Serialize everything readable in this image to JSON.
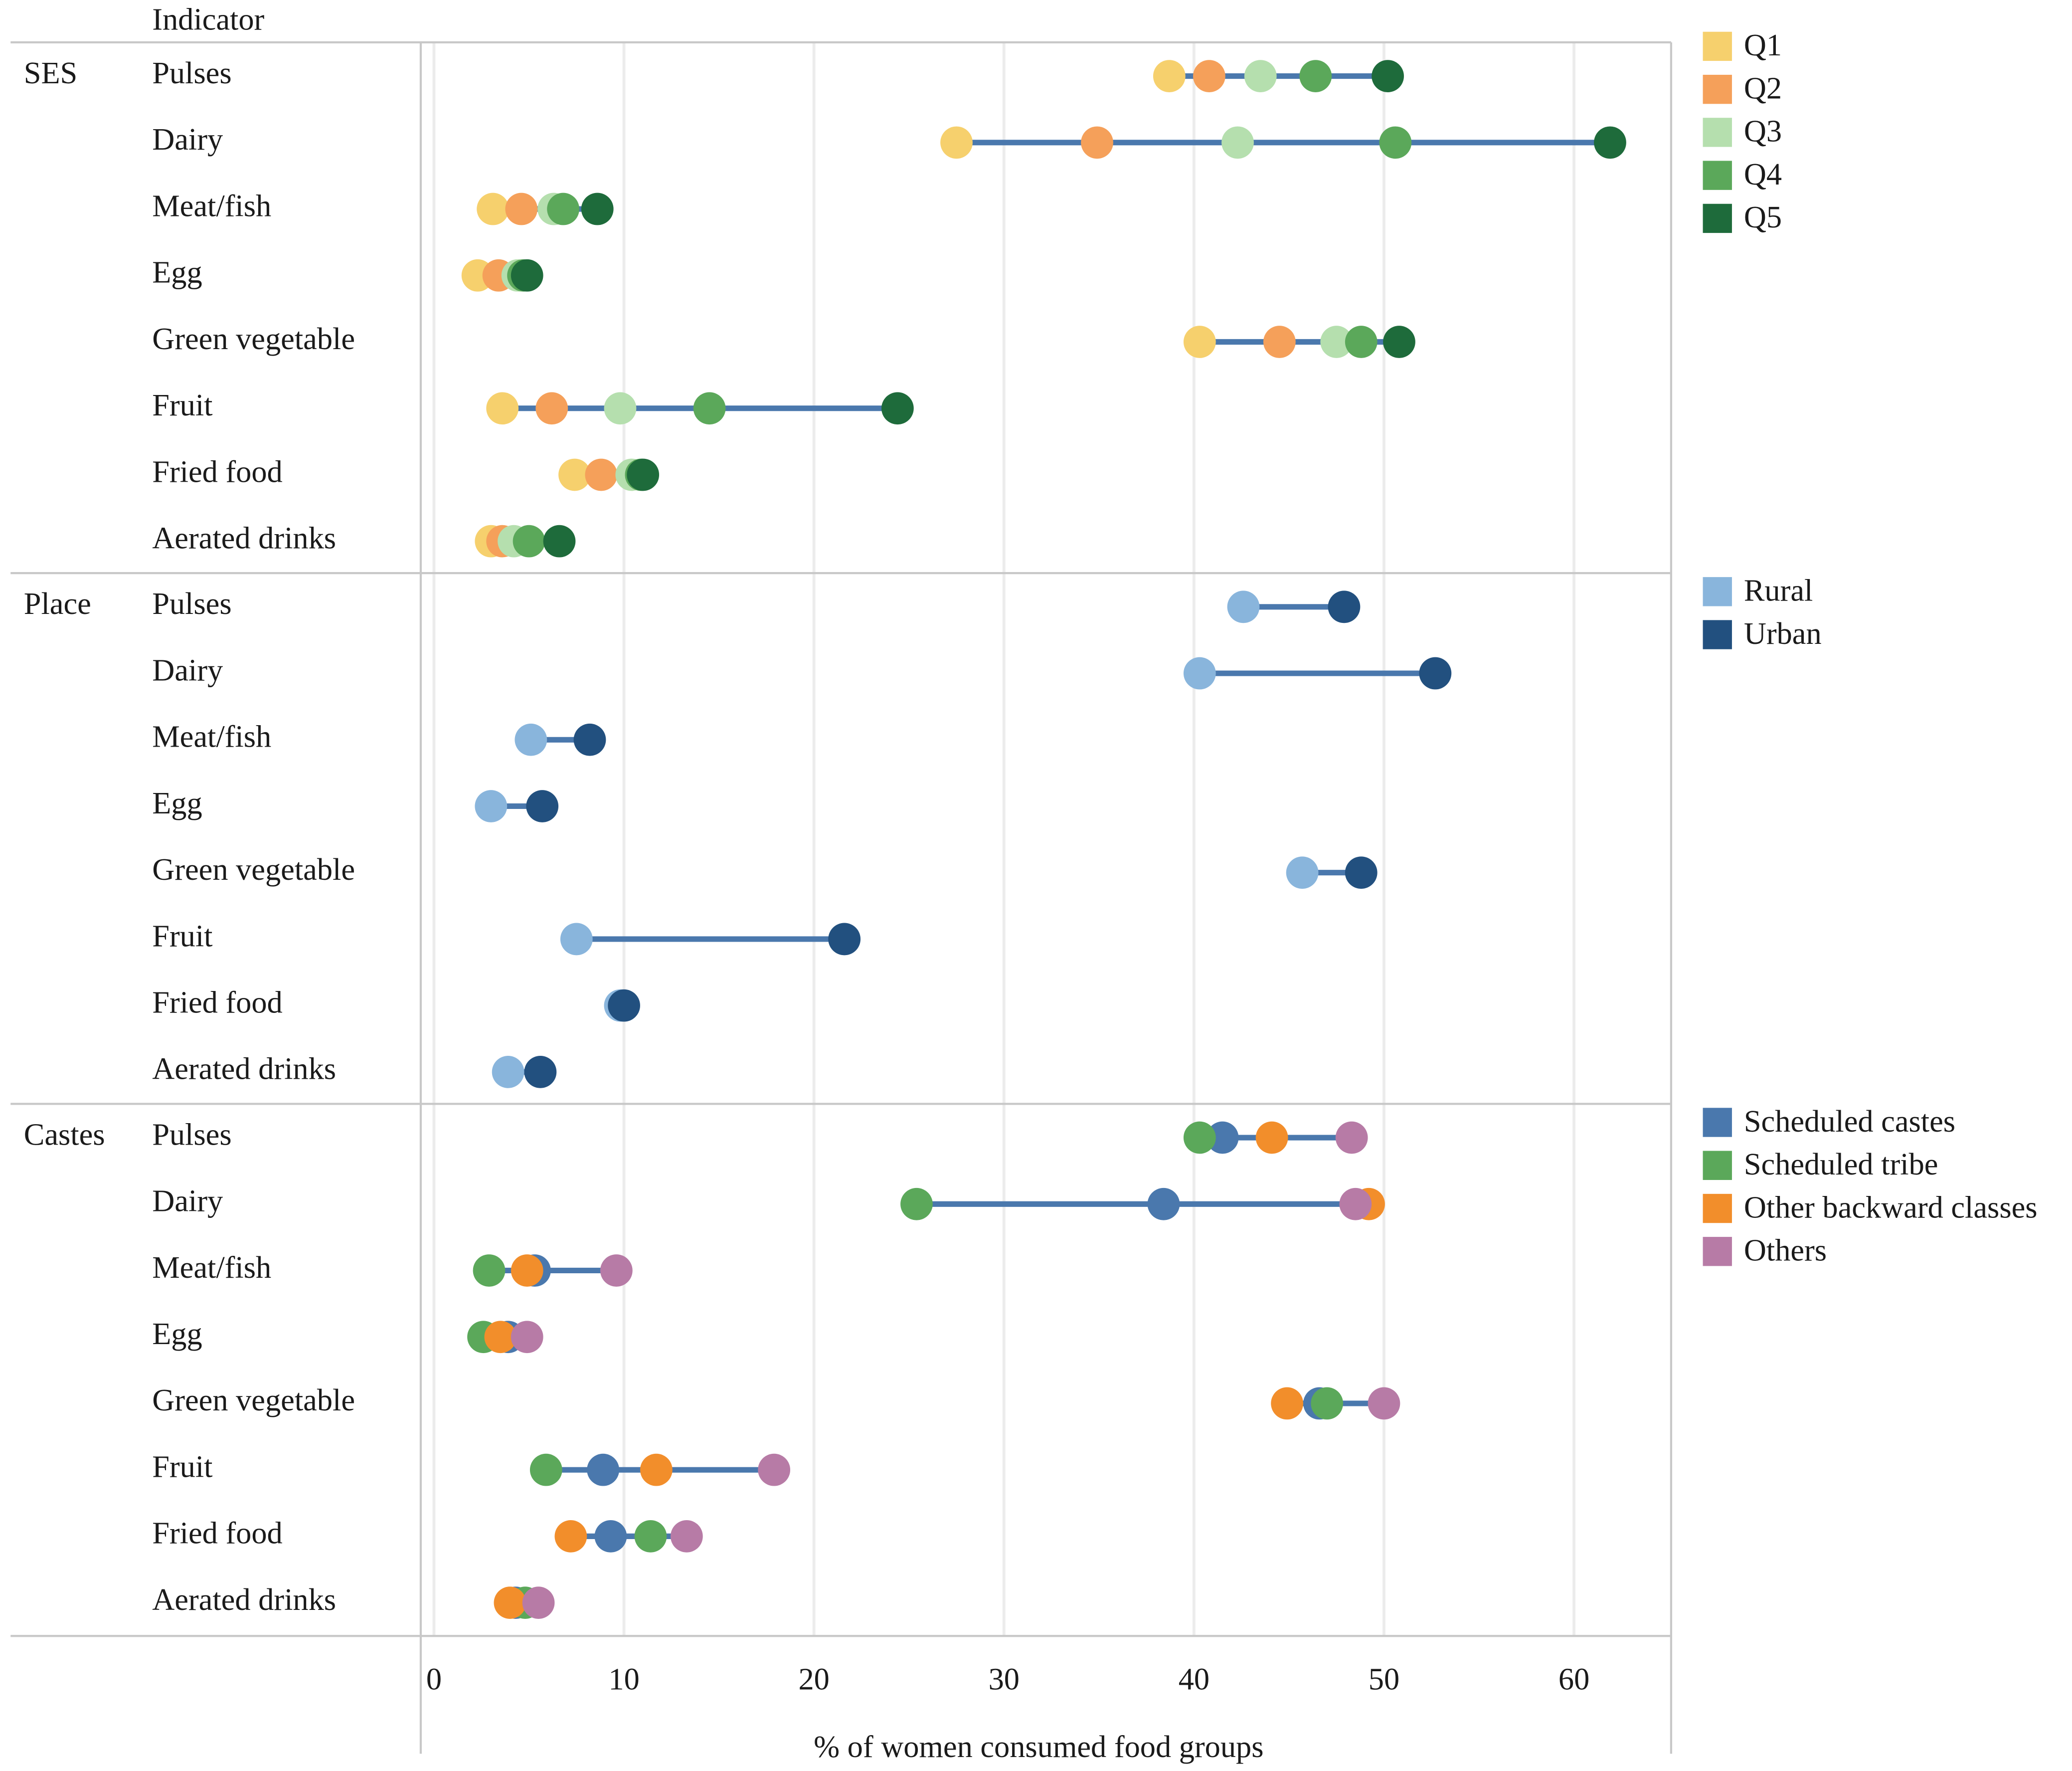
{
  "chart_data": {
    "type": "dot-range",
    "header": "Indicator",
    "xlabel": "% of women consumed food groups",
    "xlim": [
      0,
      65
    ],
    "xticks": [
      0,
      10,
      20,
      30,
      40,
      50,
      60
    ],
    "grid": true,
    "line_color": "#4a78ad",
    "panels": [
      {
        "group": "SES",
        "legend": [
          {
            "name": "Q1",
            "color": "#f6d06d"
          },
          {
            "name": "Q2",
            "color": "#f5a05a"
          },
          {
            "name": "Q3",
            "color": "#b5dfae"
          },
          {
            "name": "Q4",
            "color": "#5ba85a"
          },
          {
            "name": "Q5",
            "color": "#1e6b3b"
          }
        ],
        "indicators": [
          {
            "label": "Pulses",
            "values": {
              "Q1": 38.7,
              "Q2": 40.8,
              "Q3": 43.5,
              "Q4": 46.4,
              "Q5": 50.2
            }
          },
          {
            "label": "Dairy",
            "values": {
              "Q1": 27.5,
              "Q2": 34.9,
              "Q3": 42.3,
              "Q4": 50.6,
              "Q5": 61.9
            }
          },
          {
            "label": "Meat/fish",
            "values": {
              "Q1": 3.1,
              "Q2": 4.6,
              "Q3": 6.3,
              "Q4": 6.8,
              "Q5": 8.6
            }
          },
          {
            "label": "Egg",
            "values": {
              "Q1": 2.3,
              "Q2": 3.4,
              "Q3": 4.4,
              "Q4": 4.7,
              "Q5": 4.9
            }
          },
          {
            "label": "Green vegetable",
            "values": {
              "Q1": 40.3,
              "Q2": 44.5,
              "Q3": 47.5,
              "Q4": 48.8,
              "Q5": 50.8
            }
          },
          {
            "label": "Fruit",
            "values": {
              "Q1": 3.6,
              "Q2": 6.2,
              "Q3": 9.8,
              "Q4": 14.5,
              "Q5": 24.4
            }
          },
          {
            "label": "Fried food",
            "values": {
              "Q1": 7.4,
              "Q2": 8.8,
              "Q3": 10.4,
              "Q4": 10.9,
              "Q5": 11.0
            }
          },
          {
            "label": "Aerated drinks",
            "values": {
              "Q1": 3.0,
              "Q2": 3.6,
              "Q3": 4.2,
              "Q4": 5.0,
              "Q5": 6.6
            }
          }
        ]
      },
      {
        "group": "Place",
        "legend": [
          {
            "name": "Rural",
            "color": "#89b5dc"
          },
          {
            "name": "Urban",
            "color": "#22507f"
          }
        ],
        "indicators": [
          {
            "label": "Pulses",
            "values": {
              "Rural": 42.6,
              "Urban": 47.9
            }
          },
          {
            "label": "Dairy",
            "values": {
              "Rural": 40.3,
              "Urban": 52.7
            }
          },
          {
            "label": "Meat/fish",
            "values": {
              "Rural": 5.1,
              "Urban": 8.2
            }
          },
          {
            "label": "Egg",
            "values": {
              "Rural": 3.0,
              "Urban": 5.7
            }
          },
          {
            "label": "Green vegetable",
            "values": {
              "Rural": 45.7,
              "Urban": 48.8
            }
          },
          {
            "label": "Fruit",
            "values": {
              "Rural": 7.5,
              "Urban": 21.6
            }
          },
          {
            "label": "Fried food",
            "values": {
              "Rural": 9.8,
              "Urban": 10.0
            }
          },
          {
            "label": "Aerated drinks",
            "values": {
              "Rural": 3.9,
              "Urban": 5.6
            }
          }
        ]
      },
      {
        "group": "Castes",
        "legend": [
          {
            "name": "Scheduled castes",
            "color": "#4a78ad"
          },
          {
            "name": "Scheduled tribe",
            "color": "#5ba85a"
          },
          {
            "name": "Other backward classes",
            "color": "#f28e2b"
          },
          {
            "name": "Others",
            "color": "#b77ba6"
          }
        ],
        "indicators": [
          {
            "label": "Pulses",
            "values": {
              "Scheduled castes": 41.5,
              "Scheduled tribe": 40.3,
              "Other backward classes": 44.1,
              "Others": 48.3
            }
          },
          {
            "label": "Dairy",
            "values": {
              "Scheduled castes": 38.4,
              "Scheduled tribe": 25.4,
              "Other backward classes": 49.2,
              "Others": 48.5
            }
          },
          {
            "label": "Meat/fish",
            "values": {
              "Scheduled castes": 5.3,
              "Scheduled tribe": 2.9,
              "Other backward classes": 4.9,
              "Others": 9.6
            }
          },
          {
            "label": "Egg",
            "values": {
              "Scheduled castes": 3.9,
              "Scheduled tribe": 2.6,
              "Other backward classes": 3.5,
              "Others": 4.9
            }
          },
          {
            "label": "Green vegetable",
            "values": {
              "Scheduled castes": 46.6,
              "Scheduled tribe": 47.0,
              "Other backward classes": 44.9,
              "Others": 50.0
            }
          },
          {
            "label": "Fruit",
            "values": {
              "Scheduled castes": 8.9,
              "Scheduled tribe": 5.9,
              "Other backward classes": 11.7,
              "Others": 17.9
            }
          },
          {
            "label": "Fried food",
            "values": {
              "Scheduled castes": 9.3,
              "Scheduled tribe": 11.4,
              "Other backward classes": 7.2,
              "Others": 13.3
            }
          },
          {
            "label": "Aerated drinks",
            "values": {
              "Scheduled castes": 4.3,
              "Scheduled tribe": 4.8,
              "Other backward classes": 4.0,
              "Others": 5.5
            }
          }
        ]
      }
    ]
  }
}
